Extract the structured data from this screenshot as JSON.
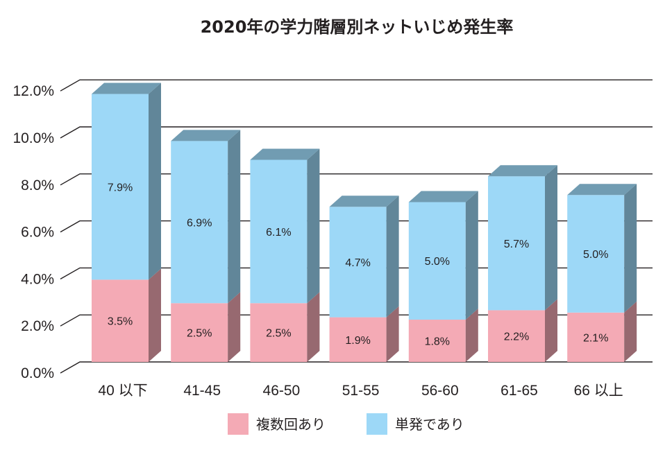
{
  "chart_data": {
    "type": "bar",
    "stacked": true,
    "three_d": true,
    "title": "2020年の学力階層別ネットいじめ発生率",
    "categories": [
      "40 以下",
      "41-45",
      "46-50",
      "51-55",
      "56-60",
      "61-65",
      "66 以上"
    ],
    "series": [
      {
        "name": "複数回あり",
        "values": [
          3.5,
          2.5,
          2.5,
          1.9,
          1.8,
          2.2,
          2.1
        ],
        "labels": [
          "3.5%",
          "2.5%",
          "2.5%",
          "1.9%",
          "1.8%",
          "2.2%",
          "2.1%"
        ],
        "color": "#f4aab5"
      },
      {
        "name": "単発であり",
        "values": [
          7.9,
          6.9,
          6.1,
          4.7,
          5.0,
          5.7,
          5.0
        ],
        "labels": [
          "7.9%",
          "6.9%",
          "6.1%",
          "4.7%",
          "5.0%",
          "5.7%",
          "5.0%"
        ],
        "color": "#9dd8f7"
      }
    ],
    "yticks": [
      "0.0%",
      "2.0%",
      "4.0%",
      "6.0%",
      "8.0%",
      "10.0%",
      "12.0%"
    ],
    "ylim": [
      0,
      12
    ],
    "grid": true,
    "legend_position": "bottom"
  }
}
